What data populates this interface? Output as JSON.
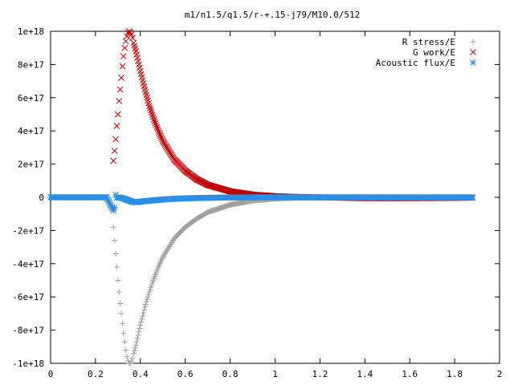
{
  "chart_data": {
    "type": "scatter",
    "title": "m1/n1.5/q1.5/r-+.15-j79/M10.0/512",
    "xlabel": "",
    "ylabel": "",
    "xlim": [
      0,
      2
    ],
    "ylim": [
      -1e+18,
      1e+18
    ],
    "x_ticks": [
      0,
      0.2,
      0.4,
      0.6,
      0.8,
      1,
      1.2,
      1.4,
      1.6,
      1.8,
      2
    ],
    "x_tick_labels": [
      "0",
      "0.2",
      "0.4",
      "0.6",
      "0.8",
      "1",
      "1.2",
      "1.4",
      "1.6",
      "1.8",
      "2"
    ],
    "y_ticks": [
      1e+18,
      8e+17,
      6e+17,
      4e+17,
      2e+17,
      0,
      -2e+17,
      -4e+17,
      -6e+17,
      -8e+17,
      -1e+18
    ],
    "y_tick_labels": [
      "1e+18",
      "8e+17",
      "6e+17",
      "4e+17",
      "2e+17",
      "0",
      "-2e+17",
      "-4e+17",
      "-6e+17",
      "-8e+17",
      "-1e+18"
    ],
    "grid": false,
    "legend_position": "top-right",
    "x_range": [
      0.28,
      1.88
    ],
    "series": [
      {
        "name": "R stress/E",
        "marker": "plus",
        "color": "#a0a0a0",
        "points": [
          [
            0.28,
            -1.8e+17
          ],
          [
            0.285,
            -2.6e+17
          ],
          [
            0.29,
            -3.4e+17
          ],
          [
            0.295,
            -4.2e+17
          ],
          [
            0.3,
            -5e+17
          ],
          [
            0.305,
            -5.7e+17
          ],
          [
            0.31,
            -6.4e+17
          ],
          [
            0.315,
            -7e+17
          ],
          [
            0.32,
            -7.6e+17
          ],
          [
            0.325,
            -8.2e+17
          ],
          [
            0.33,
            -8.7e+17
          ],
          [
            0.335,
            -9.2e+17
          ],
          [
            0.34,
            -9.6e+17
          ],
          [
            0.345,
            -9.85e+17
          ],
          [
            0.35,
            -1e+18
          ],
          [
            0.355,
            -1e+18
          ],
          [
            0.36,
            -9.9e+17
          ],
          [
            0.365,
            -9.7e+17
          ],
          [
            0.37,
            -9.4e+17
          ],
          [
            0.38,
            -8.9e+17
          ],
          [
            0.39,
            -8.3e+17
          ],
          [
            0.4,
            -7.7e+17
          ],
          [
            0.42,
            -6.6e+17
          ],
          [
            0.44,
            -5.7e+17
          ],
          [
            0.46,
            -4.9e+17
          ],
          [
            0.48,
            -4.2e+17
          ],
          [
            0.5,
            -3.6e+17
          ],
          [
            0.55,
            -2.5e+17
          ],
          [
            0.6,
            -1.8e+17
          ],
          [
            0.65,
            -1.3e+17
          ],
          [
            0.7,
            -9e+16
          ],
          [
            0.8,
            -4.5e+16
          ],
          [
            0.9,
            -2e+16
          ],
          [
            1.0,
            -8000000000000000.0
          ],
          [
            1.1,
            -3000000000000000.0
          ],
          [
            1.2,
            -1000000000000000.0
          ],
          [
            1.4,
            0
          ],
          [
            1.6,
            0
          ],
          [
            1.8,
            0
          ],
          [
            1.88,
            0
          ]
        ]
      },
      {
        "name": "G work/E",
        "marker": "x",
        "color": "#c00000",
        "points": [
          [
            0.28,
            2.2e+17
          ],
          [
            0.285,
            2.8e+17
          ],
          [
            0.29,
            3.5e+17
          ],
          [
            0.295,
            4.3e+17
          ],
          [
            0.3,
            5e+17
          ],
          [
            0.305,
            5.8e+17
          ],
          [
            0.31,
            6.5e+17
          ],
          [
            0.315,
            7.2e+17
          ],
          [
            0.32,
            7.9e+17
          ],
          [
            0.325,
            8.5e+17
          ],
          [
            0.33,
            9e+17
          ],
          [
            0.335,
            9.4e+17
          ],
          [
            0.34,
            9.7e+17
          ],
          [
            0.345,
            9.9e+17
          ],
          [
            0.35,
            1e+18
          ],
          [
            0.355,
            9.95e+17
          ],
          [
            0.36,
            9.8e+17
          ],
          [
            0.365,
            9.6e+17
          ],
          [
            0.37,
            9.3e+17
          ],
          [
            0.38,
            8.8e+17
          ],
          [
            0.39,
            8.2e+17
          ],
          [
            0.4,
            7.6e+17
          ],
          [
            0.42,
            6.5e+17
          ],
          [
            0.44,
            5.5e+17
          ],
          [
            0.46,
            4.7e+17
          ],
          [
            0.48,
            4e+17
          ],
          [
            0.5,
            3.4e+17
          ],
          [
            0.55,
            2.3e+17
          ],
          [
            0.6,
            1.6e+17
          ],
          [
            0.65,
            1.1e+17
          ],
          [
            0.7,
            7.5e+16
          ],
          [
            0.8,
            3.6e+16
          ],
          [
            0.9,
            1.6e+16
          ],
          [
            1.0,
            7000000000000000.0
          ],
          [
            1.1,
            2000000000000000.0
          ],
          [
            1.2,
            0
          ],
          [
            1.4,
            -5000000000000000.0
          ],
          [
            1.6,
            -5000000000000000.0
          ],
          [
            1.8,
            -3000000000000000.0
          ],
          [
            1.88,
            -2000000000000000.0
          ]
        ]
      },
      {
        "name": "Acoustic flux/E",
        "marker": "star",
        "color": "#2b8fe6",
        "points": [
          [
            0.0,
            0
          ],
          [
            0.1,
            0
          ],
          [
            0.2,
            0
          ],
          [
            0.25,
            0
          ],
          [
            0.28,
            -8e+16
          ],
          [
            0.285,
            -6e+16
          ],
          [
            0.29,
            1.5e+16
          ],
          [
            0.295,
            -2000000000000000.0
          ],
          [
            0.3,
            0
          ],
          [
            0.32,
            -5000000000000000.0
          ],
          [
            0.34,
            -1.5e+16
          ],
          [
            0.36,
            -2.5e+16
          ],
          [
            0.38,
            -3e+16
          ],
          [
            0.4,
            -2.6e+16
          ],
          [
            0.45,
            -1.9e+16
          ],
          [
            0.5,
            -1.3e+16
          ],
          [
            0.55,
            -9000000000000000.0
          ],
          [
            0.6,
            -6000000000000000.0
          ],
          [
            0.7,
            -3000000000000000.0
          ],
          [
            0.8,
            -1000000000000000.0
          ],
          [
            0.9,
            0
          ],
          [
            1.0,
            0
          ],
          [
            1.2,
            0
          ],
          [
            1.4,
            0
          ],
          [
            1.6,
            0
          ],
          [
            1.8,
            0
          ],
          [
            1.88,
            0
          ]
        ]
      }
    ]
  }
}
